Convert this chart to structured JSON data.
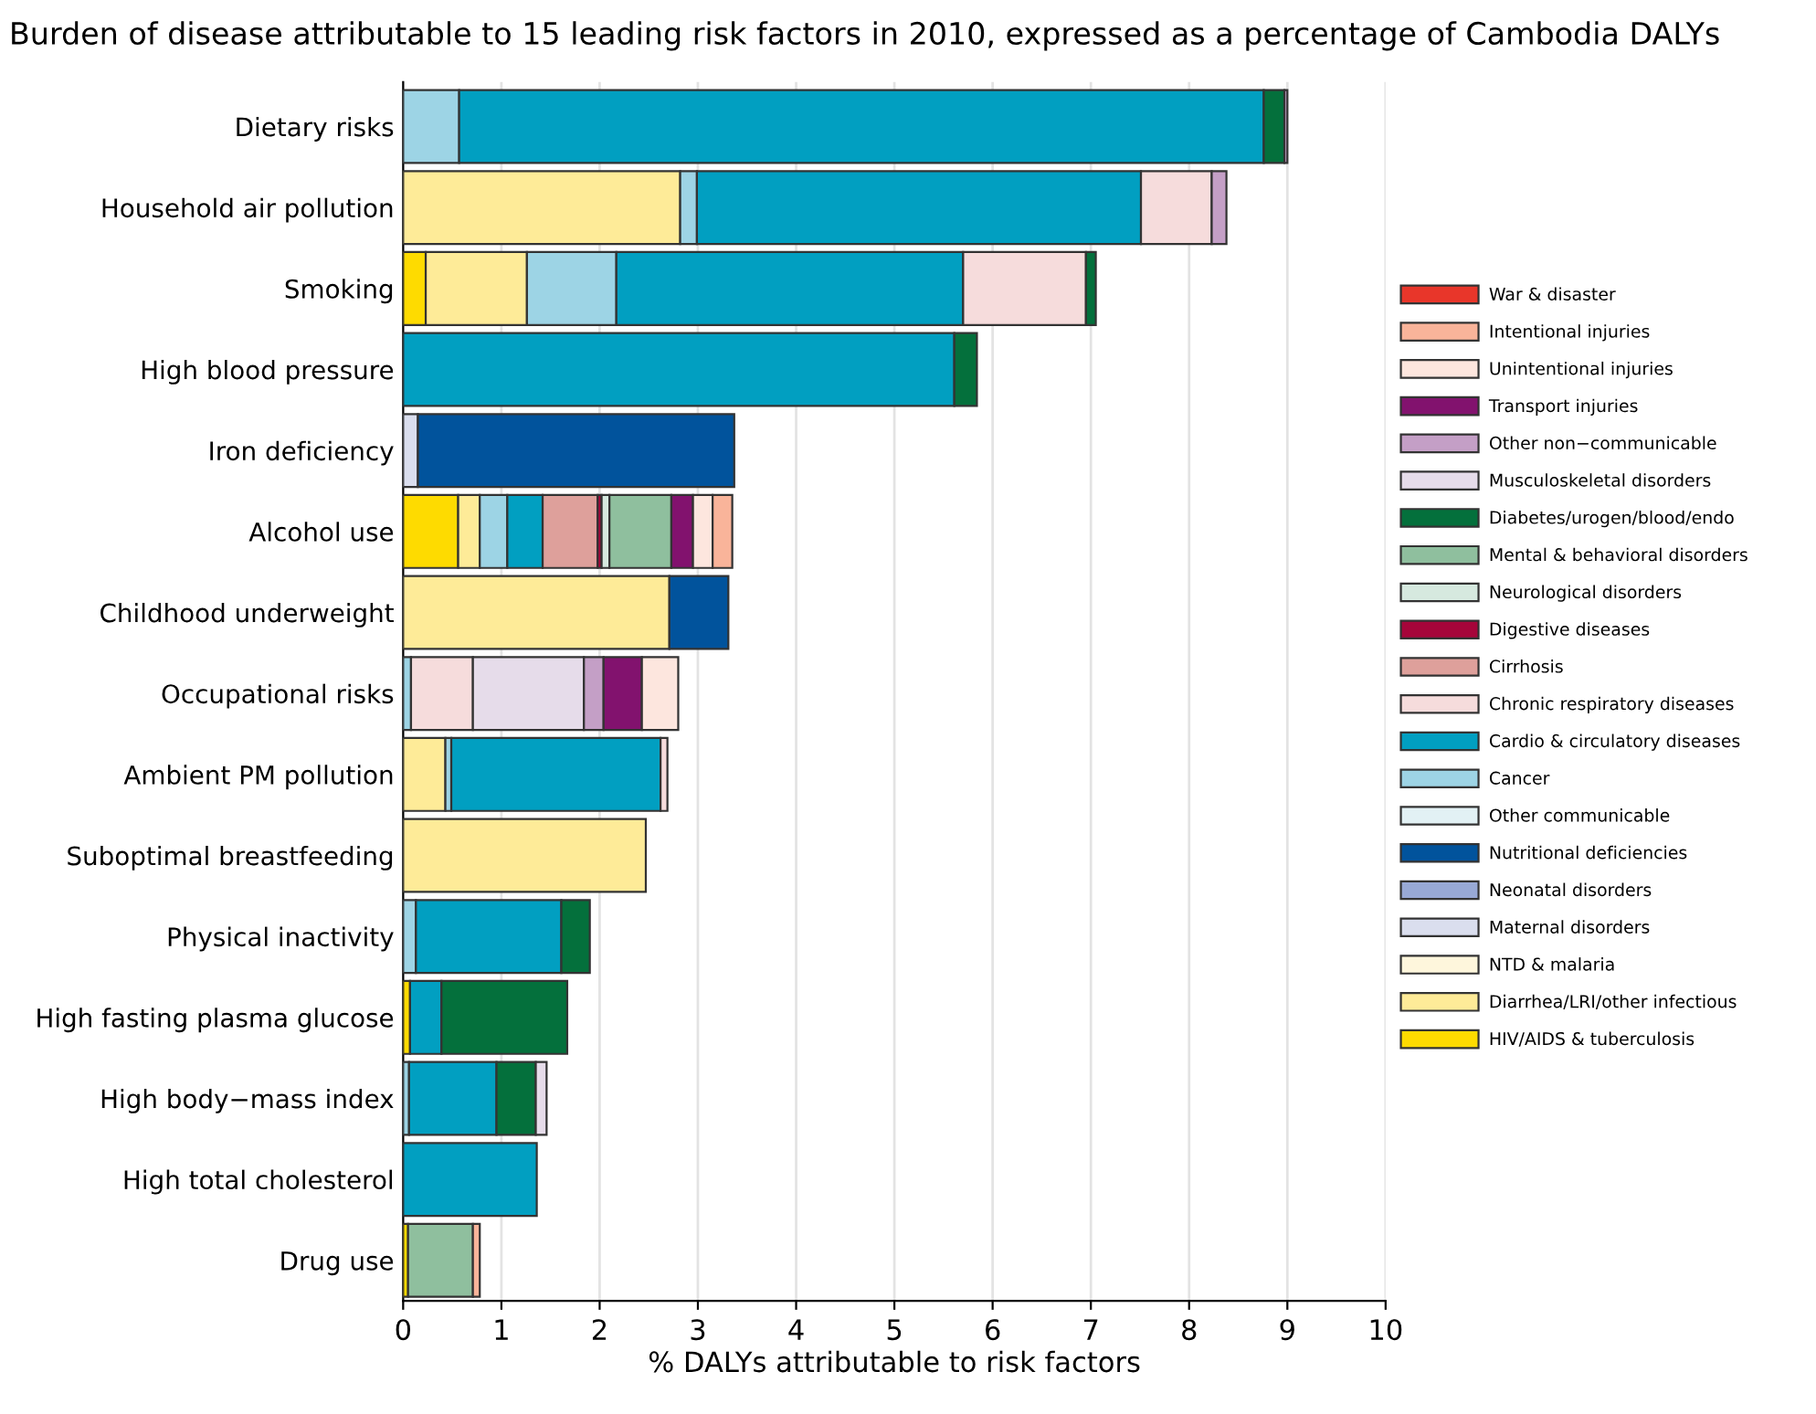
{
  "chart_data": {
    "type": "bar",
    "orientation": "horizontal",
    "stacked": true,
    "title": "Burden of disease attributable to 15 leading risk factors in 2010, expressed as a percentage of Cambodia DALYs",
    "xlabel": "% DALYs attributable to risk factors",
    "categories": [
      "Dietary risks",
      "Household air pollution",
      "Smoking",
      "High blood pressure",
      "Iron deficiency",
      "Alcohol use",
      "Childhood underweight",
      "Occupational risks",
      "Ambient PM pollution",
      "Suboptimal breastfeeding",
      "Physical inactivity",
      "High fasting plasma glucose",
      "High body−mass index",
      "High total cholesterol",
      "Drug use"
    ],
    "xlim": [
      0,
      10
    ],
    "xticks": [
      0,
      1,
      2,
      3,
      4,
      5,
      6,
      7,
      8,
      9,
      10
    ],
    "grid": "x",
    "legend": "right",
    "series": [
      {
        "name": "HIV/AIDS & tuberculosis",
        "color": "#fedb00",
        "values": [
          null,
          null,
          0.23,
          null,
          null,
          0.56,
          null,
          null,
          null,
          null,
          null,
          0.07,
          null,
          null,
          0.05
        ]
      },
      {
        "name": "Diarrhea/LRI/other infectious",
        "color": "#feeb98",
        "values": [
          null,
          2.82,
          1.03,
          null,
          null,
          0.22,
          2.71,
          null,
          0.43,
          2.47,
          null,
          null,
          null,
          null,
          null
        ]
      },
      {
        "name": "NTD & malaria",
        "color": "#fef6dc",
        "values": [
          null,
          null,
          null,
          null,
          null,
          null,
          null,
          null,
          null,
          null,
          null,
          null,
          null,
          null,
          null
        ]
      },
      {
        "name": "Maternal disorders",
        "color": "#dadeee",
        "values": [
          null,
          null,
          null,
          null,
          0.15,
          null,
          null,
          null,
          null,
          null,
          null,
          null,
          null,
          null,
          null
        ]
      },
      {
        "name": "Neonatal disorders",
        "color": "#98a9d6",
        "values": [
          null,
          null,
          null,
          null,
          null,
          null,
          null,
          null,
          null,
          null,
          null,
          null,
          null,
          null,
          null
        ]
      },
      {
        "name": "Nutritional deficiencies",
        "color": "#01539c",
        "values": [
          null,
          null,
          null,
          null,
          3.22,
          null,
          0.6,
          null,
          null,
          null,
          null,
          null,
          null,
          null,
          null
        ]
      },
      {
        "name": "Other communicable",
        "color": "#e2f1f4",
        "values": [
          null,
          null,
          null,
          null,
          null,
          null,
          null,
          null,
          null,
          null,
          null,
          null,
          null,
          null,
          null
        ]
      },
      {
        "name": "Cancer",
        "color": "#9dd4e5",
        "values": [
          0.57,
          0.17,
          0.91,
          null,
          null,
          0.28,
          null,
          0.08,
          0.06,
          null,
          0.13,
          null,
          0.06,
          null,
          null
        ]
      },
      {
        "name": "Cardio & circulatory diseases",
        "color": "#019fc1",
        "values": [
          8.19,
          4.52,
          3.53,
          5.61,
          null,
          0.36,
          null,
          null,
          2.13,
          null,
          1.48,
          0.32,
          0.89,
          1.36,
          null
        ]
      },
      {
        "name": "Chronic respiratory diseases",
        "color": "#f6dcdc",
        "values": [
          null,
          0.72,
          1.25,
          null,
          null,
          null,
          null,
          0.63,
          0.07,
          null,
          null,
          null,
          null,
          null,
          null
        ]
      },
      {
        "name": "Cirrhosis",
        "color": "#dea09b",
        "values": [
          null,
          null,
          null,
          null,
          null,
          0.56,
          null,
          null,
          null,
          null,
          null,
          null,
          null,
          null,
          null
        ]
      },
      {
        "name": "Digestive diseases",
        "color": "#a6053a",
        "values": [
          null,
          null,
          null,
          null,
          null,
          0.04,
          null,
          null,
          null,
          null,
          null,
          null,
          null,
          null,
          null
        ]
      },
      {
        "name": "Neurological disorders",
        "color": "#d6e9df",
        "values": [
          null,
          null,
          null,
          null,
          null,
          0.08,
          null,
          null,
          null,
          null,
          null,
          null,
          null,
          null,
          null
        ]
      },
      {
        "name": "Mental & behavioral disorders",
        "color": "#8fbf9e",
        "values": [
          null,
          null,
          null,
          null,
          null,
          0.63,
          null,
          null,
          null,
          null,
          null,
          null,
          null,
          null,
          0.66
        ]
      },
      {
        "name": "Diabetes/urogen/blood/endo",
        "color": "#04703c",
        "values": [
          0.21,
          null,
          0.1,
          0.23,
          null,
          null,
          null,
          null,
          null,
          null,
          0.29,
          1.28,
          0.4,
          null,
          null
        ]
      },
      {
        "name": "Musculoskeletal disorders",
        "color": "#e6dcea",
        "values": [
          null,
          null,
          null,
          null,
          null,
          null,
          null,
          1.13,
          null,
          null,
          null,
          null,
          0.11,
          null,
          null
        ]
      },
      {
        "name": "Other non−communicable",
        "color": "#c49fc6",
        "values": [
          0.03,
          0.15,
          null,
          null,
          null,
          null,
          null,
          0.2,
          null,
          null,
          null,
          null,
          null,
          null,
          null
        ]
      },
      {
        "name": "Transport injuries",
        "color": "#82126e",
        "values": [
          null,
          null,
          null,
          null,
          null,
          0.22,
          null,
          0.39,
          null,
          null,
          null,
          null,
          null,
          null,
          null
        ]
      },
      {
        "name": "Unintentional injuries",
        "color": "#fde6de",
        "values": [
          null,
          null,
          null,
          null,
          null,
          0.2,
          null,
          0.37,
          null,
          null,
          null,
          null,
          null,
          null,
          null
        ]
      },
      {
        "name": "Intentional injuries",
        "color": "#f9b49a",
        "values": [
          null,
          null,
          null,
          null,
          null,
          0.2,
          null,
          null,
          null,
          null,
          null,
          null,
          null,
          null,
          0.07
        ]
      },
      {
        "name": "War & disaster",
        "color": "#e8362a",
        "values": [
          null,
          null,
          null,
          null,
          null,
          null,
          null,
          null,
          null,
          null,
          null,
          null,
          null,
          null,
          null
        ]
      }
    ]
  }
}
